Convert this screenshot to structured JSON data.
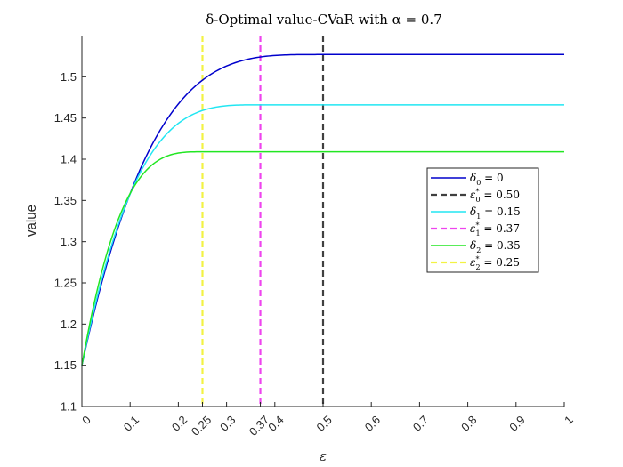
{
  "chart_data": {
    "type": "line",
    "title": "δ-Optimal value-CVaR with α = 0.7",
    "xlabel": "ε",
    "ylabel": "value",
    "xlim": [
      0,
      1
    ],
    "ylim": [
      1.1,
      1.55
    ],
    "xticks": [
      0,
      0.1,
      0.2,
      0.25,
      0.3,
      0.37,
      0.4,
      0.5,
      0.6,
      0.7,
      0.8,
      0.9,
      1
    ],
    "xtick_labels": [
      "0",
      "0.1",
      "0.2",
      "0.25",
      "0.3",
      "0.37",
      "0.4",
      "0.5",
      "0.6",
      "0.7",
      "0.8",
      "0.9",
      "1"
    ],
    "yticks": [
      1.1,
      1.15,
      1.2,
      1.25,
      1.3,
      1.35,
      1.4,
      1.45,
      1.5
    ],
    "ytick_labels": [
      "1.1",
      "1.15",
      "1.2",
      "1.25",
      "1.3",
      "1.35",
      "1.4",
      "1.45",
      "1.5"
    ],
    "grid": false,
    "legend_position": "center-right",
    "series": [
      {
        "name": "δ0 = 0",
        "legend_main": "δ",
        "legend_sub": "0",
        "legend_sup": "",
        "legend_value": " = 0",
        "kind": "curve",
        "color": "#0000cc",
        "dashed": false,
        "start": 1.15,
        "plateau": 1.527,
        "eps_star": 0.5,
        "shape": 3.6
      },
      {
        "name": "ε0* = 0.50",
        "legend_main": "ε",
        "legend_sub": "0",
        "legend_sup": "*",
        "legend_value": " = 0.50",
        "kind": "vline",
        "x": 0.5,
        "color": "#404040",
        "dashed": true
      },
      {
        "name": "δ1 = 0.15",
        "legend_main": "δ",
        "legend_sub": "1",
        "legend_sup": "",
        "legend_value": " = 0.15",
        "kind": "curve",
        "color": "#22e6f2",
        "dashed": false,
        "start": 1.15,
        "plateau": 1.466,
        "eps_star": 0.37,
        "shape": 3.4
      },
      {
        "name": "ε1* = 0.37",
        "legend_main": "ε",
        "legend_sub": "1",
        "legend_sup": "*",
        "legend_value": " = 0.37",
        "kind": "vline",
        "x": 0.37,
        "color": "#ee44ee",
        "dashed": true
      },
      {
        "name": "δ2 = 0.35",
        "legend_main": "δ",
        "legend_sub": "2",
        "legend_sup": "",
        "legend_value": " = 0.35",
        "kind": "curve",
        "color": "#22e622",
        "dashed": false,
        "start": 1.15,
        "plateau": 1.409,
        "eps_star": 0.25,
        "shape": 3.2
      },
      {
        "name": "ε2* = 0.25",
        "legend_main": "ε",
        "legend_sub": "2",
        "legend_sup": "*",
        "legend_value": " = 0.25",
        "kind": "vline",
        "x": 0.25,
        "color": "#f2f244",
        "dashed": true
      }
    ]
  }
}
